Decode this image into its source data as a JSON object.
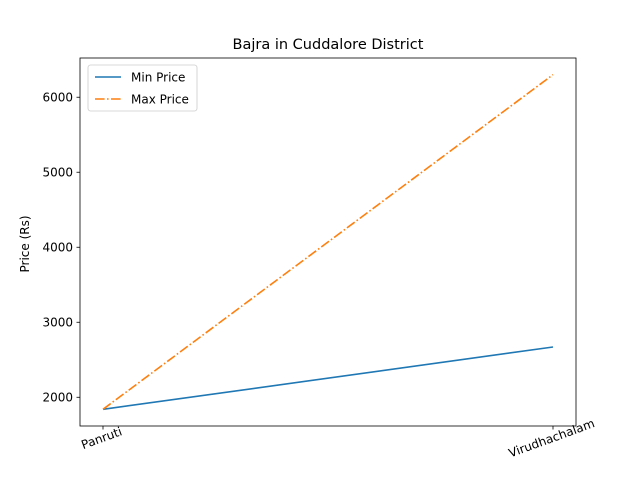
{
  "chart_data": {
    "type": "line",
    "title": "Bajra in Cuddalore District",
    "xlabel": "",
    "ylabel": "Price (Rs)",
    "categories": [
      "Panruti",
      "Virudhachalam"
    ],
    "series": [
      {
        "name": "Min Price",
        "values": [
          1840,
          2670
        ],
        "color": "#1f77b4",
        "style": "solid"
      },
      {
        "name": "Max Price",
        "values": [
          1840,
          6300
        ],
        "color": "#ff7f0e",
        "style": "dashdot"
      }
    ],
    "ylim": [
      1617,
      6523
    ],
    "yticks": [
      2000,
      3000,
      4000,
      5000,
      6000
    ],
    "xtick_rotation": 20,
    "grid": false,
    "legend_position": "upper-left"
  }
}
